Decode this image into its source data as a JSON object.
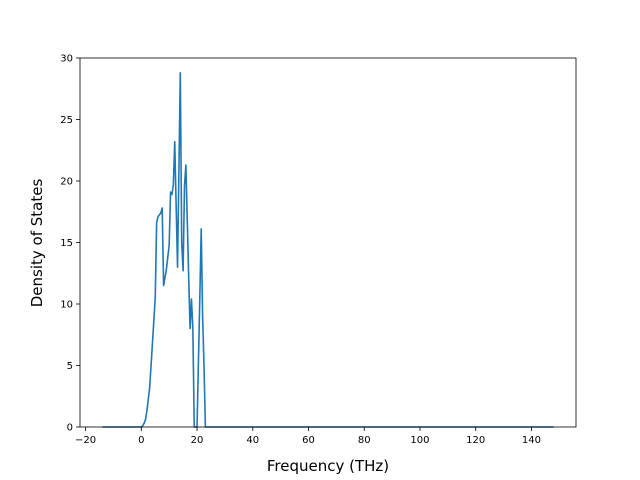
{
  "chart_data": {
    "type": "line",
    "title": "",
    "xlabel": "Frequency (THz)",
    "ylabel": "Density of States",
    "xlim": [
      -22,
      156
    ],
    "ylim": [
      0,
      30
    ],
    "grid": false,
    "legend": "none",
    "xticks": [
      -20,
      0,
      20,
      40,
      60,
      80,
      100,
      120,
      140
    ],
    "xtick_labels": [
      "−20",
      "0",
      "20",
      "40",
      "60",
      "80",
      "100",
      "120",
      "140"
    ],
    "yticks": [
      0,
      5,
      10,
      15,
      20,
      25,
      30
    ],
    "ytick_labels": [
      "0",
      "5",
      "10",
      "15",
      "20",
      "25",
      "30"
    ],
    "series": [
      {
        "color": "#1f77b4",
        "x": [
          -14,
          -5,
          -1,
          0,
          0.5,
          1,
          1.5,
          2,
          3,
          4,
          5,
          5.5,
          6,
          7,
          7.5,
          8,
          9,
          10,
          10.5,
          11,
          11.5,
          12,
          12.5,
          13,
          14,
          14.5,
          15,
          15.5,
          16,
          17,
          17.5,
          18,
          18.5,
          19,
          19.5,
          20,
          21,
          21.5,
          22,
          22.5,
          23,
          23.5,
          24,
          30,
          60,
          100,
          130,
          148
        ],
        "values": [
          0,
          0,
          0,
          0,
          0.1,
          0.3,
          0.6,
          1.3,
          3.2,
          6.8,
          10.5,
          16.6,
          17.1,
          17.4,
          17.8,
          11.5,
          12.8,
          14.8,
          19.1,
          18.9,
          19.7,
          23.2,
          18.0,
          13.0,
          28.8,
          15.0,
          12.7,
          19.6,
          21.3,
          12.2,
          8.0,
          10.4,
          8.0,
          0,
          0,
          0,
          10.5,
          16.1,
          9.0,
          5.0,
          0,
          0,
          0,
          0,
          0,
          0,
          0,
          0
        ]
      }
    ]
  }
}
